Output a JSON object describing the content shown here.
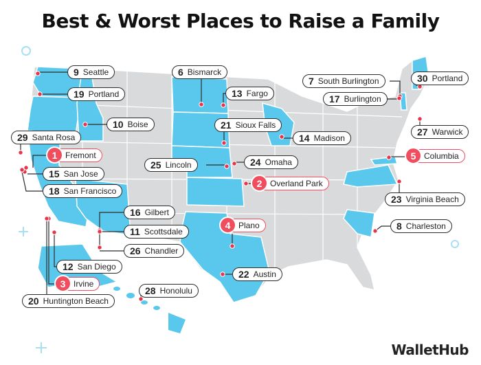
{
  "title": "Best & Worst Places to Raise a Family",
  "brand": "WalletHub",
  "colors": {
    "highlight_state": "#5ac8ec",
    "base_state": "#d9dadc",
    "marker": "#e8344a",
    "top5_badge": "#f04e5e",
    "line": "#2b2b2b"
  },
  "cities": [
    {
      "rank": "9",
      "name": "Seattle"
    },
    {
      "rank": "19",
      "name": "Portland"
    },
    {
      "rank": "10",
      "name": "Boise"
    },
    {
      "rank": "29",
      "name": "Santa Rosa"
    },
    {
      "rank": "1",
      "name": "Fremont"
    },
    {
      "rank": "15",
      "name": "San Jose"
    },
    {
      "rank": "18",
      "name": "San Francisco"
    },
    {
      "rank": "16",
      "name": "Gilbert"
    },
    {
      "rank": "11",
      "name": "Scottsdale"
    },
    {
      "rank": "26",
      "name": "Chandler"
    },
    {
      "rank": "12",
      "name": "San Diego"
    },
    {
      "rank": "3",
      "name": "Irvine"
    },
    {
      "rank": "20",
      "name": "Huntington Beach"
    },
    {
      "rank": "28",
      "name": "Honolulu"
    },
    {
      "rank": "6",
      "name": "Bismarck"
    },
    {
      "rank": "13",
      "name": "Fargo"
    },
    {
      "rank": "21",
      "name": "Sioux Falls"
    },
    {
      "rank": "25",
      "name": "Lincoln"
    },
    {
      "rank": "24",
      "name": "Omaha"
    },
    {
      "rank": "2",
      "name": "Overland Park"
    },
    {
      "rank": "4",
      "name": "Plano"
    },
    {
      "rank": "22",
      "name": "Austin"
    },
    {
      "rank": "14",
      "name": "Madison"
    },
    {
      "rank": "7",
      "name": "South Burlington"
    },
    {
      "rank": "17",
      "name": "Burlington"
    },
    {
      "rank": "30",
      "name": "Portland"
    },
    {
      "rank": "27",
      "name": "Warwick"
    },
    {
      "rank": "5",
      "name": "Columbia"
    },
    {
      "rank": "23",
      "name": "Virginia Beach"
    },
    {
      "rank": "8",
      "name": "Charleston"
    }
  ]
}
